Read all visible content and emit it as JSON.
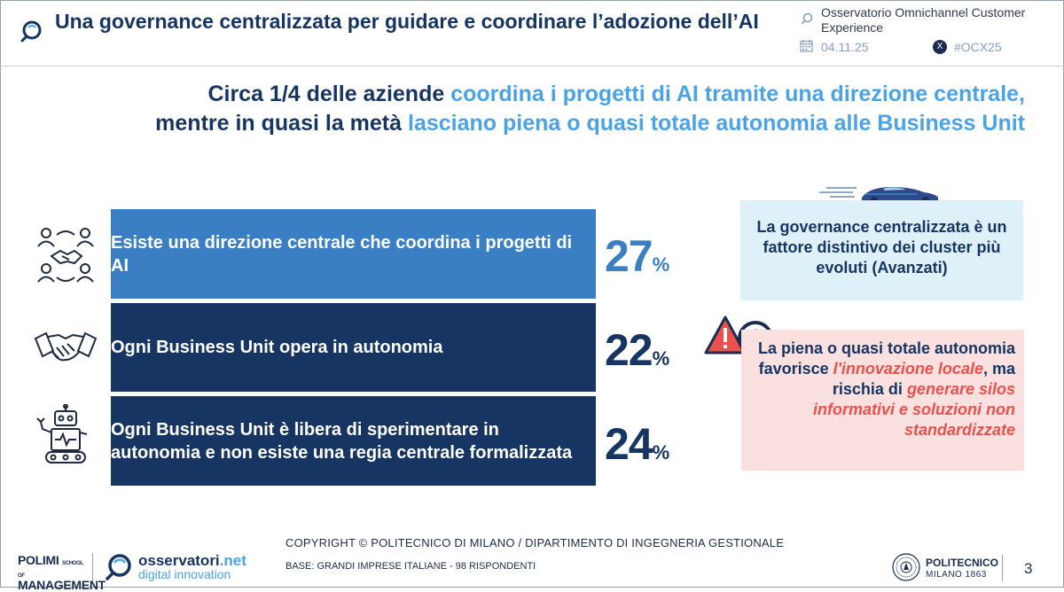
{
  "header": {
    "title": "Una governance centralizzata per guidare e coordinare l’adozione dell’AI",
    "observatory": "Osservatorio Omnichannel Customer Experience",
    "date": "04.11.25",
    "social_x": "X",
    "hashtag": "#OCX25"
  },
  "headline": {
    "line1_dark": "Circa 1/4 delle aziende ",
    "line1_blue": "coordina i progetti di AI tramite una direzione centrale,",
    "line2_dark": "mentre in quasi la metà ",
    "line2_blue": "lasciano piena o quasi totale autonomia alle Business Unit"
  },
  "bars": [
    {
      "label": "Esiste una direzione centrale che coordina i progetti di AI",
      "value": "27",
      "unit": "%",
      "icon": "team-handshake-icon",
      "color": "#3a7fc4"
    },
    {
      "label": "Ogni Business Unit opera in autonomia",
      "value": "22",
      "unit": "%",
      "icon": "handshake-icon",
      "color": "#173563"
    },
    {
      "label": "Ogni Business Unit è libera di sperimentare in autonomia e non esiste una regia centrale formalizzata",
      "value": "24",
      "unit": "%",
      "icon": "robot-icon",
      "color": "#173563"
    }
  ],
  "callouts": {
    "blue_box": "La governance centralizzata è un fattore distintivo dei cluster più evoluti (Avanzati)",
    "red_box": {
      "part1": "La piena o quasi totale autonomia favorisce ",
      "em1": "l'innovazione locale",
      "part2": ", ma rischia di ",
      "em2": "generare silos informativi e soluzioni non standardizzate"
    }
  },
  "footer": {
    "copyright": "COPYRIGHT © POLITECNICO DI MILANO / DIPARTIMENTO DI INGEGNERIA GESTIONALE",
    "base": "BASE: GRANDI IMPRESE ITALIANE - 98 RISPONDENTI",
    "polimi_line1": "POLIMI",
    "polimi_school": "SCHOOL OF",
    "polimi_line2": "MANAGEMENT",
    "osservatori": "osservatori",
    "osservatori_net": ".net",
    "digital_innovation": "digital innovation",
    "politecnico": "POLITECNICO",
    "milano": "MILANO 1863",
    "page_number": "3"
  },
  "colors": {
    "navy": "#173563",
    "accent_blue": "#4aa3e6",
    "bar_blue": "#3a7fc4",
    "light_blue_box": "#def1f8",
    "light_red_box": "#fbe0e0",
    "red_emphasis": "#e8514c"
  }
}
